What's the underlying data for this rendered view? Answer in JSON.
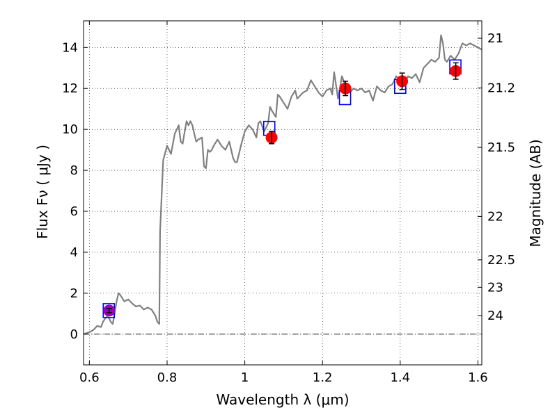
{
  "chart_data": {
    "type": "line",
    "title": "",
    "xlabel": "Wavelength  λ (μm)",
    "ylabel": "Flux  Fν  ( μJy )",
    "y2label": "Magnitude (AB)",
    "xlim": [
      0.585,
      1.61
    ],
    "ylim": [
      -1.5,
      15.3
    ],
    "grid": true,
    "x_ticks": [
      0.6,
      0.8,
      1.0,
      1.2,
      1.4,
      1.6
    ],
    "x_tick_labels": [
      "0.6",
      "0.8",
      "1",
      "1.2",
      "1.4",
      "1.6"
    ],
    "y_ticks": [
      0,
      2,
      4,
      6,
      8,
      10,
      12,
      14
    ],
    "y_tick_labels": [
      "0",
      "2",
      "4",
      "6",
      "8",
      "10",
      "12",
      "14"
    ],
    "y2_ticks": [
      {
        "label": "21",
        "flux": 14.45
      },
      {
        "label": "21.2",
        "flux": 12.02
      },
      {
        "label": "21.5",
        "flux": 9.12
      },
      {
        "label": "22",
        "flux": 5.75
      },
      {
        "label": "22.5",
        "flux": 3.63
      },
      {
        "label": "23",
        "flux": 2.29
      },
      {
        "label": "24",
        "flux": 0.91
      }
    ],
    "zero_line": 0,
    "model_spectrum": {
      "color": "#808080",
      "x": [
        0.585,
        0.6,
        0.61,
        0.62,
        0.63,
        0.635,
        0.64,
        0.645,
        0.65,
        0.655,
        0.66,
        0.665,
        0.67,
        0.675,
        0.68,
        0.69,
        0.7,
        0.71,
        0.72,
        0.73,
        0.74,
        0.75,
        0.76,
        0.77,
        0.775,
        0.78,
        0.782,
        0.79,
        0.8,
        0.805,
        0.81,
        0.82,
        0.83,
        0.835,
        0.84,
        0.85,
        0.855,
        0.86,
        0.865,
        0.87,
        0.875,
        0.88,
        0.89,
        0.895,
        0.9,
        0.905,
        0.91,
        0.915,
        0.92,
        0.93,
        0.94,
        0.95,
        0.96,
        0.97,
        0.975,
        0.98,
        0.99,
        1.0,
        1.01,
        1.02,
        1.03,
        1.035,
        1.04,
        1.05,
        1.06,
        1.065,
        1.07,
        1.08,
        1.085,
        1.09,
        1.1,
        1.11,
        1.12,
        1.13,
        1.135,
        1.14,
        1.15,
        1.16,
        1.17,
        1.18,
        1.19,
        1.2,
        1.21,
        1.22,
        1.225,
        1.23,
        1.24,
        1.25,
        1.26,
        1.27,
        1.28,
        1.29,
        1.3,
        1.31,
        1.32,
        1.33,
        1.34,
        1.35,
        1.36,
        1.37,
        1.38,
        1.39,
        1.4,
        1.41,
        1.42,
        1.43,
        1.44,
        1.45,
        1.46,
        1.47,
        1.48,
        1.49,
        1.5,
        1.505,
        1.51,
        1.515,
        1.52,
        1.53,
        1.54,
        1.55,
        1.56,
        1.57,
        1.58,
        1.59,
        1.6,
        1.61
      ],
      "y": [
        0.0,
        0.1,
        0.2,
        0.4,
        0.35,
        0.6,
        0.75,
        0.85,
        0.8,
        0.6,
        0.5,
        1.0,
        1.6,
        2.0,
        1.9,
        1.6,
        1.7,
        1.5,
        1.35,
        1.4,
        1.2,
        1.3,
        1.2,
        0.9,
        0.6,
        0.5,
        5.0,
        8.5,
        9.2,
        9.0,
        8.8,
        9.8,
        10.2,
        9.4,
        9.3,
        10.4,
        10.2,
        10.4,
        10.2,
        9.8,
        9.4,
        9.5,
        9.6,
        8.2,
        8.1,
        9.0,
        8.9,
        9.0,
        9.2,
        9.5,
        9.2,
        9.0,
        9.4,
        8.6,
        8.4,
        8.4,
        9.2,
        9.9,
        10.2,
        10.0,
        9.6,
        10.3,
        10.4,
        9.9,
        10.3,
        11.1,
        10.9,
        10.6,
        11.7,
        11.6,
        11.3,
        11.0,
        11.6,
        11.9,
        11.5,
        11.6,
        11.8,
        11.9,
        12.4,
        12.1,
        11.8,
        11.6,
        11.9,
        12.0,
        11.7,
        12.8,
        11.5,
        12.6,
        12.1,
        11.8,
        12.0,
        11.9,
        12.0,
        11.8,
        11.9,
        11.4,
        12.1,
        11.9,
        11.8,
        12.1,
        12.2,
        12.6,
        12.4,
        12.2,
        12.6,
        12.5,
        12.7,
        12.3,
        13.0,
        13.2,
        13.4,
        13.3,
        13.5,
        14.6,
        14.2,
        13.4,
        13.3,
        13.6,
        13.4,
        13.7,
        14.2,
        14.1,
        14.2,
        14.1,
        14.0,
        13.9
      ]
    },
    "photometry": [
      {
        "x": 0.651,
        "y": 1.15,
        "err": 0.1,
        "color": "#9b00bf"
      },
      {
        "x": 1.069,
        "y": 9.6,
        "err": 0.3,
        "color": "#ff0000"
      },
      {
        "x": 1.259,
        "y": 12.0,
        "err": 0.35,
        "color": "#ff0000"
      },
      {
        "x": 1.405,
        "y": 12.35,
        "err": 0.4,
        "color": "#ff0000"
      },
      {
        "x": 1.543,
        "y": 12.85,
        "err": 0.4,
        "color": "#ff0000"
      }
    ],
    "synthetic_boxes": [
      {
        "x": 0.65,
        "y": 1.15
      },
      {
        "x": 1.063,
        "y": 10.05
      },
      {
        "x": 1.258,
        "y": 11.55
      },
      {
        "x": 1.4,
        "y": 12.1
      },
      {
        "x": 1.542,
        "y": 13.05
      }
    ],
    "colors": {
      "model": "#808080",
      "box": "#0000ff",
      "error": "#000000",
      "grid": "#000000"
    }
  }
}
